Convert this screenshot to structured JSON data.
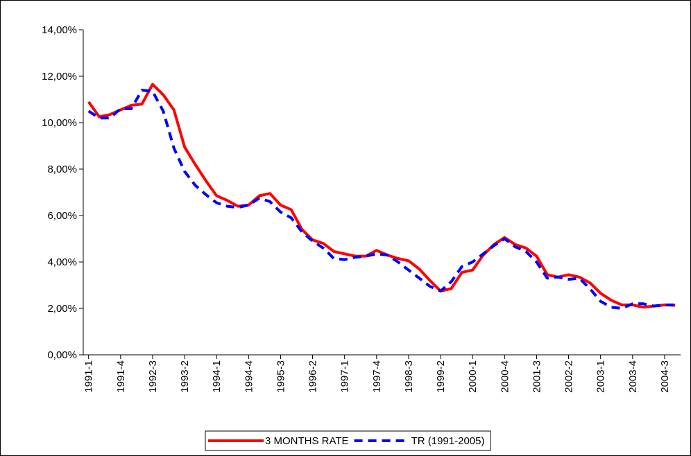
{
  "chart_data": {
    "type": "line",
    "categories": [
      "1991-1",
      null,
      null,
      "1991-4",
      null,
      null,
      "1992-3",
      null,
      null,
      "1993-2",
      null,
      null,
      "1994-1",
      null,
      null,
      "1994-4",
      null,
      null,
      "1995-3",
      null,
      null,
      "1996-2",
      null,
      null,
      "1997-1",
      null,
      null,
      "1997-4",
      null,
      null,
      "1998-3",
      null,
      null,
      "1999-2",
      null,
      null,
      "2000-1",
      null,
      null,
      "2000-4",
      null,
      null,
      "2001-3",
      null,
      null,
      "2002-2",
      null,
      null,
      "2003-1",
      null,
      null,
      "2003-4",
      null,
      null,
      "2004-3",
      null
    ],
    "series": [
      {
        "name": "3 MONTHS RATE",
        "color": "#ff0000",
        "line_style": "solid",
        "values": [
          10.9,
          10.25,
          10.35,
          10.55,
          10.75,
          10.8,
          11.65,
          11.2,
          10.55,
          8.95,
          8.2,
          7.5,
          6.85,
          6.65,
          6.4,
          6.45,
          6.85,
          6.95,
          6.45,
          6.25,
          5.4,
          4.95,
          4.8,
          4.45,
          4.35,
          4.25,
          4.25,
          4.5,
          4.3,
          4.15,
          4.05,
          3.7,
          3.2,
          2.75,
          2.85,
          3.55,
          3.65,
          4.3,
          4.75,
          5.05,
          4.75,
          4.6,
          4.25,
          3.45,
          3.35,
          3.45,
          3.35,
          3.1,
          2.65,
          2.35,
          2.15,
          2.15,
          2.05,
          2.1,
          2.15,
          2.13
        ]
      },
      {
        "name": "TR (1991-2005)",
        "color": "#0000ff",
        "line_style": "dashed",
        "values": [
          10.5,
          10.2,
          10.2,
          10.6,
          10.6,
          11.4,
          11.35,
          10.5,
          8.9,
          7.9,
          7.3,
          6.9,
          6.55,
          6.4,
          6.35,
          6.45,
          6.75,
          6.6,
          6.15,
          5.9,
          5.3,
          4.9,
          4.6,
          4.15,
          4.1,
          4.2,
          4.25,
          4.35,
          4.3,
          4.0,
          3.65,
          3.3,
          2.95,
          2.75,
          3.15,
          3.8,
          4.0,
          4.35,
          4.7,
          5.0,
          4.65,
          4.45,
          4.0,
          3.3,
          3.35,
          3.25,
          3.3,
          2.85,
          2.3,
          2.05,
          2.0,
          2.2,
          2.2,
          2.1,
          2.15,
          2.15
        ]
      }
    ],
    "ylim": [
      0,
      14
    ],
    "yticks": [
      {
        "value": 0,
        "label": "0,00%"
      },
      {
        "value": 2,
        "label": "2,00%"
      },
      {
        "value": 4,
        "label": "4,00%"
      },
      {
        "value": 6,
        "label": "6,00%"
      },
      {
        "value": 8,
        "label": "8,00%"
      },
      {
        "value": 10,
        "label": "10,00%"
      },
      {
        "value": 12,
        "label": "12,00%"
      },
      {
        "value": 14,
        "label": "14,00%"
      }
    ],
    "grid": false,
    "legend": "bottom"
  }
}
